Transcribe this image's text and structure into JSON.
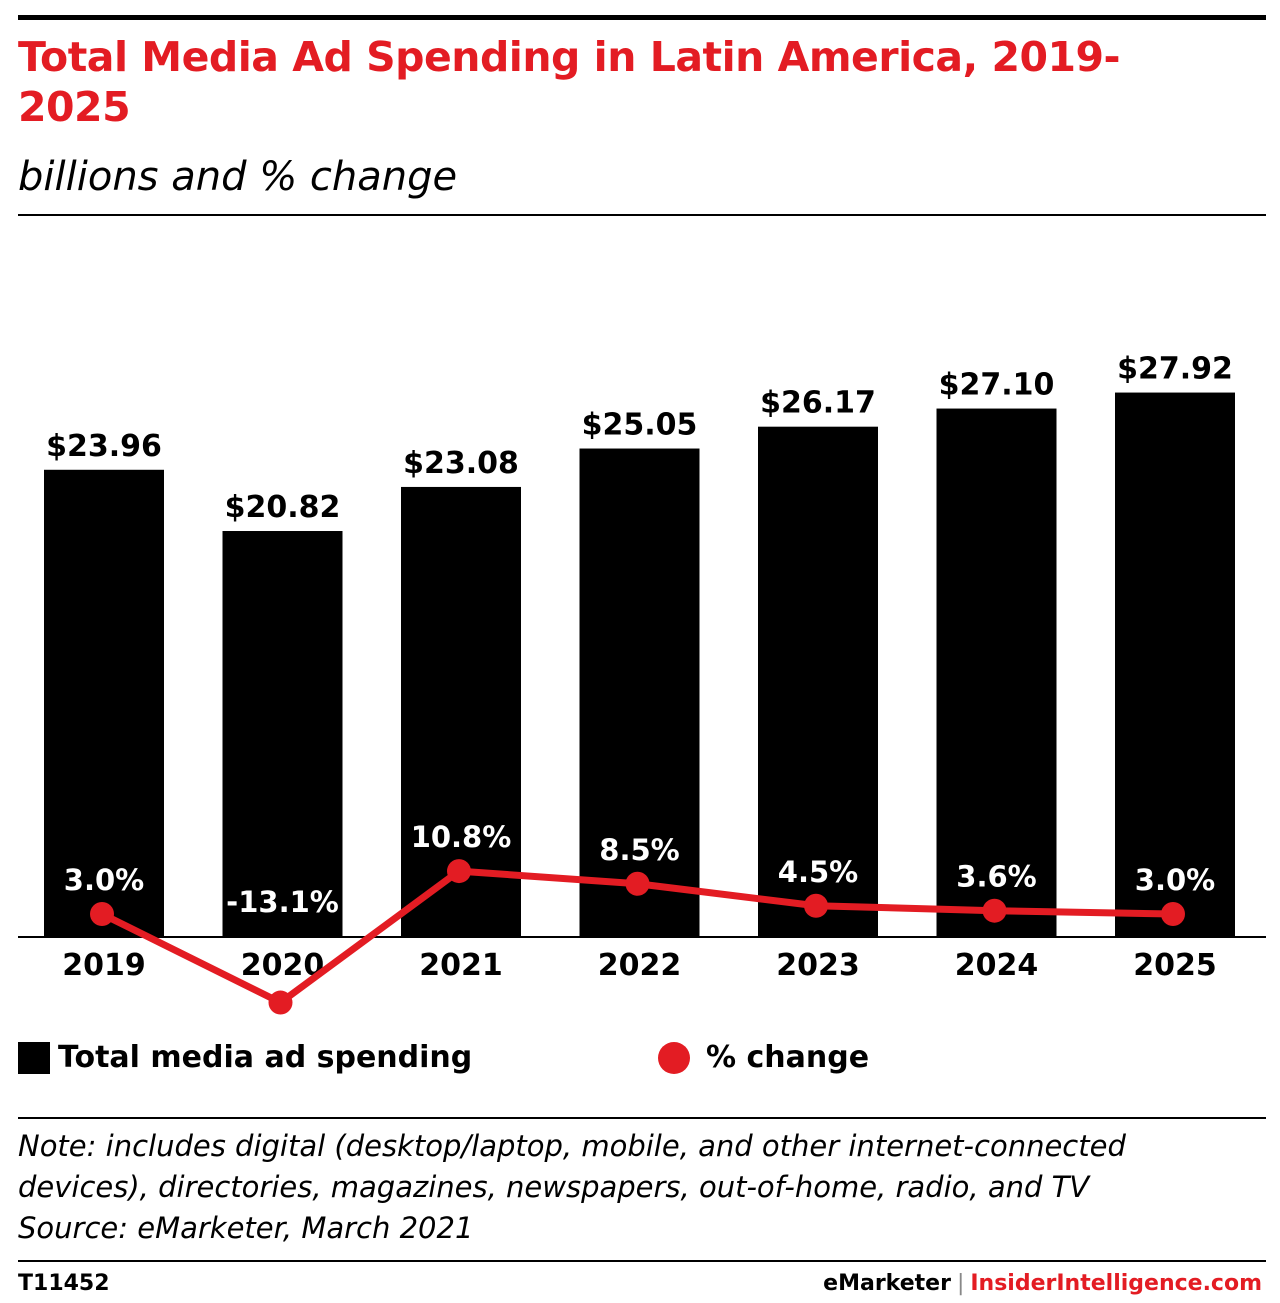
{
  "header": {
    "title": "Total Media Ad Spending in Latin America, 2019-2025",
    "subtitle": "billions and % change"
  },
  "legend": {
    "bars_label": "Total media ad spending",
    "line_label": "% change"
  },
  "footer": {
    "note": "Note: includes digital (desktop/laptop, mobile, and other internet-connected devices), directories, magazines, newspapers, out-of-home, radio, and TV",
    "source": "Source: eMarketer, March 2021",
    "chart_id": "T11452",
    "brand_left": "eMarketer",
    "brand_sep": "|",
    "brand_right": "InsiderIntelligence.com"
  },
  "colors": {
    "bar": "#000000",
    "line": "#e31c23",
    "title": "#e31c23"
  },
  "chart_data": {
    "type": "bar",
    "categories": [
      "2019",
      "2020",
      "2021",
      "2022",
      "2023",
      "2024",
      "2025"
    ],
    "series": [
      {
        "name": "Total media ad spending",
        "type": "bar",
        "values": [
          23.96,
          20.82,
          23.08,
          25.05,
          26.17,
          27.1,
          27.92
        ],
        "labels": [
          "$23.96",
          "$20.82",
          "$23.08",
          "$25.05",
          "$26.17",
          "$27.10",
          "$27.92"
        ]
      },
      {
        "name": "% change",
        "type": "line",
        "values": [
          3.0,
          -13.1,
          10.8,
          8.5,
          4.5,
          3.6,
          3.0
        ],
        "labels": [
          "3.0%",
          "-13.1%",
          "10.8%",
          "8.5%",
          "4.5%",
          "3.6%",
          "3.0%"
        ]
      }
    ],
    "title": "Total Media Ad Spending in Latin America, 2019-2025",
    "subtitle": "billions and % change",
    "grid": false,
    "legend_position": "bottom-left"
  }
}
